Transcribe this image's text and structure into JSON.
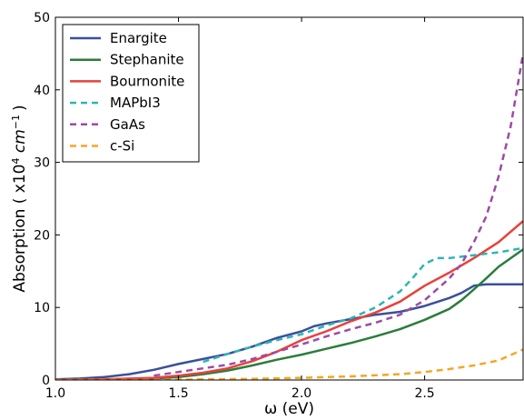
{
  "chart_data": {
    "type": "line",
    "title": "",
    "xlabel": "ω (eV)",
    "ylabel": {
      "main": "Absorption ( x10",
      "sup1": "4",
      "unit": " cm",
      "sup2": "−1",
      "close": ")"
    },
    "xlim": [
      1.0,
      2.9
    ],
    "ylim": [
      0,
      50
    ],
    "xticks": [
      1.0,
      1.5,
      2.0,
      2.5
    ],
    "xtick_labels": [
      "1.0",
      "1.5",
      "2.0",
      "2.5"
    ],
    "yticks": [
      0,
      10,
      20,
      30,
      40,
      50
    ],
    "ytick_labels": [
      "0",
      "10",
      "20",
      "30",
      "40",
      "50"
    ],
    "grid": false,
    "legend_position": "top-left",
    "series": [
      {
        "name": "Enargite",
        "color": "#3a4f9c",
        "dash": "solid",
        "points": [
          [
            1.0,
            0.1
          ],
          [
            1.1,
            0.2
          ],
          [
            1.2,
            0.4
          ],
          [
            1.3,
            0.8
          ],
          [
            1.4,
            1.4
          ],
          [
            1.5,
            2.2
          ],
          [
            1.6,
            2.9
          ],
          [
            1.7,
            3.6
          ],
          [
            1.8,
            4.6
          ],
          [
            1.9,
            5.8
          ],
          [
            2.0,
            6.7
          ],
          [
            2.05,
            7.4
          ],
          [
            2.1,
            7.8
          ],
          [
            2.2,
            8.4
          ],
          [
            2.3,
            9.0
          ],
          [
            2.4,
            9.4
          ],
          [
            2.5,
            10.2
          ],
          [
            2.6,
            11.3
          ],
          [
            2.65,
            12.0
          ],
          [
            2.7,
            13.0
          ],
          [
            2.75,
            13.2
          ],
          [
            2.9,
            13.2
          ]
        ]
      },
      {
        "name": "Stephanite",
        "color": "#2b7d3c",
        "dash": "solid",
        "points": [
          [
            1.0,
            0.0
          ],
          [
            1.2,
            0.05
          ],
          [
            1.4,
            0.2
          ],
          [
            1.5,
            0.4
          ],
          [
            1.6,
            0.8
          ],
          [
            1.7,
            1.3
          ],
          [
            1.8,
            2.0
          ],
          [
            1.9,
            2.8
          ],
          [
            2.0,
            3.5
          ],
          [
            2.1,
            4.3
          ],
          [
            2.2,
            5.1
          ],
          [
            2.3,
            6.0
          ],
          [
            2.4,
            7.0
          ],
          [
            2.5,
            8.3
          ],
          [
            2.6,
            9.8
          ],
          [
            2.65,
            11.0
          ],
          [
            2.7,
            12.5
          ],
          [
            2.75,
            14.0
          ],
          [
            2.8,
            15.6
          ],
          [
            2.9,
            18.0
          ]
        ]
      },
      {
        "name": "Bournonite",
        "color": "#e8413a",
        "dash": "solid",
        "points": [
          [
            1.0,
            0.0
          ],
          [
            1.2,
            0.1
          ],
          [
            1.4,
            0.3
          ],
          [
            1.5,
            0.6
          ],
          [
            1.6,
            1.0
          ],
          [
            1.7,
            1.6
          ],
          [
            1.8,
            2.6
          ],
          [
            1.9,
            3.9
          ],
          [
            2.0,
            5.5
          ],
          [
            2.1,
            6.7
          ],
          [
            2.2,
            8.1
          ],
          [
            2.3,
            9.3
          ],
          [
            2.4,
            10.8
          ],
          [
            2.5,
            13.0
          ],
          [
            2.6,
            14.8
          ],
          [
            2.7,
            16.8
          ],
          [
            2.8,
            19.0
          ],
          [
            2.9,
            21.9
          ]
        ]
      },
      {
        "name": "MAPbI3",
        "color": "#2bb5b5",
        "dash": "dashed",
        "points": [
          [
            1.6,
            2.5
          ],
          [
            1.7,
            3.6
          ],
          [
            1.8,
            4.6
          ],
          [
            1.9,
            5.5
          ],
          [
            2.0,
            6.3
          ],
          [
            2.1,
            7.5
          ],
          [
            2.2,
            8.5
          ],
          [
            2.3,
            10.0
          ],
          [
            2.4,
            12.2
          ],
          [
            2.45,
            14.0
          ],
          [
            2.5,
            16.0
          ],
          [
            2.55,
            16.8
          ],
          [
            2.6,
            16.8
          ],
          [
            2.7,
            17.2
          ],
          [
            2.8,
            17.6
          ],
          [
            2.9,
            18.2
          ]
        ]
      },
      {
        "name": "GaAs",
        "color": "#9d4aa6",
        "dash": "dashed",
        "points": [
          [
            1.4,
            0.6
          ],
          [
            1.5,
            1.1
          ],
          [
            1.6,
            1.6
          ],
          [
            1.7,
            2.1
          ],
          [
            1.8,
            2.9
          ],
          [
            1.9,
            3.9
          ],
          [
            2.0,
            4.9
          ],
          [
            2.1,
            6.0
          ],
          [
            2.2,
            7.0
          ],
          [
            2.3,
            7.9
          ],
          [
            2.4,
            9.0
          ],
          [
            2.5,
            11.0
          ],
          [
            2.6,
            14.0
          ],
          [
            2.65,
            16.0
          ],
          [
            2.7,
            19.0
          ],
          [
            2.75,
            22.5
          ],
          [
            2.8,
            28.0
          ],
          [
            2.85,
            35.0
          ],
          [
            2.9,
            45.0
          ]
        ]
      },
      {
        "name": "c-Si",
        "color": "#f5a623",
        "dash": "dashed",
        "points": [
          [
            1.0,
            0.0
          ],
          [
            1.4,
            0.0
          ],
          [
            1.6,
            0.1
          ],
          [
            1.8,
            0.15
          ],
          [
            2.0,
            0.3
          ],
          [
            2.2,
            0.5
          ],
          [
            2.4,
            0.8
          ],
          [
            2.5,
            1.1
          ],
          [
            2.6,
            1.5
          ],
          [
            2.7,
            2.0
          ],
          [
            2.8,
            2.7
          ],
          [
            2.9,
            4.2
          ]
        ]
      }
    ]
  }
}
